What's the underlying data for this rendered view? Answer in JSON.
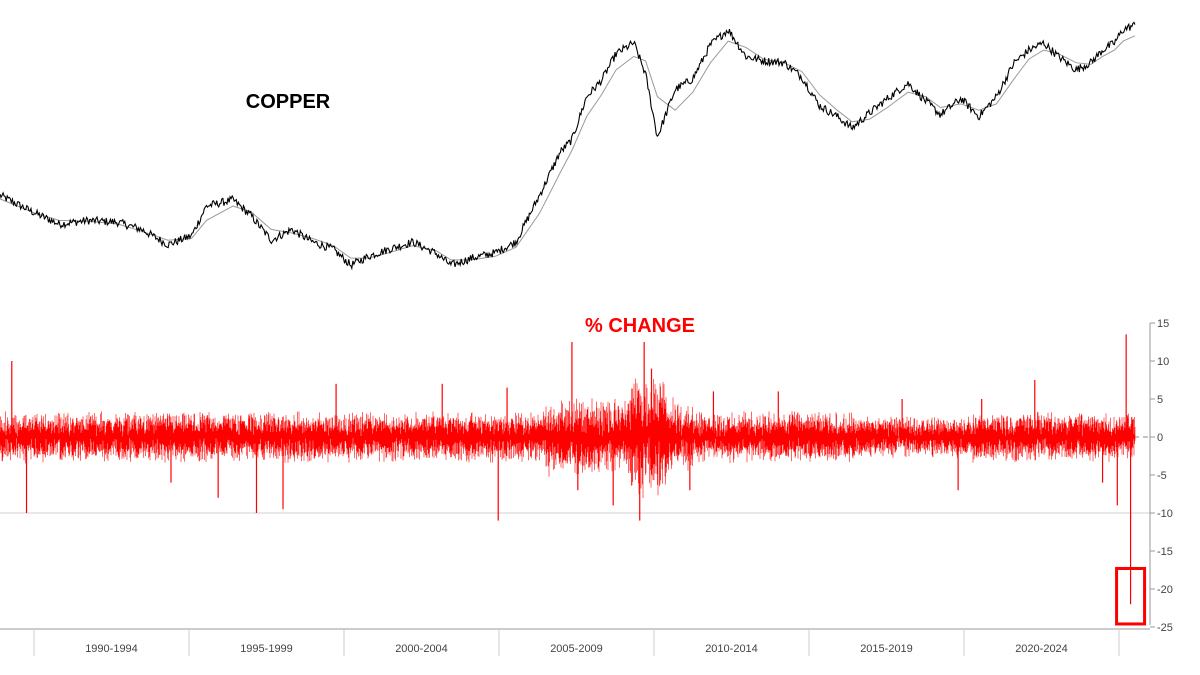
{
  "chart_data": [
    {
      "type": "line",
      "title": "COPPER",
      "series_color": "#000000",
      "ma_color": "#9a9a9a",
      "x_ticks": [
        "1990-1994",
        "1995-1999",
        "2000-2004",
        "2005-2009",
        "2010-2014",
        "2015-2019",
        "2020-2024"
      ],
      "x_range": [
        1987.0,
        2025.5
      ],
      "x": [
        1987.0,
        1987.6,
        1988.2,
        1989.0,
        1990.0,
        1991.0,
        1991.8,
        1992.7,
        1993.5,
        1994.0,
        1994.9,
        1995.5,
        1996.2,
        1996.9,
        1997.6,
        1998.3,
        1998.9,
        1999.5,
        2000.2,
        2001.0,
        2001.8,
        2002.3,
        2003.0,
        2003.8,
        2004.5,
        2005.3,
        2006.0,
        2006.4,
        2006.9,
        2007.4,
        2007.9,
        2008.5,
        2008.9,
        2009.3,
        2009.9,
        2010.5,
        2011.1,
        2011.7,
        2012.3,
        2012.9,
        2013.6,
        2014.2,
        2014.8,
        2015.4,
        2015.9,
        2016.5,
        2017.1,
        2017.8,
        2018.4,
        2018.9,
        2019.6,
        2020.2,
        2020.8,
        2021.4,
        2021.9,
        2022.4,
        2022.9,
        2023.5,
        2024.0,
        2024.4,
        2024.8,
        2025.1,
        2025.5
      ],
      "values": [
        100,
        90,
        80,
        68,
        72,
        70,
        62,
        45,
        55,
        88,
        95,
        78,
        50,
        62,
        48,
        40,
        22,
        32,
        40,
        48,
        35,
        22,
        30,
        36,
        48,
        100,
        148,
        162,
        210,
        228,
        258,
        270,
        235,
        165,
        218,
        230,
        268,
        285,
        255,
        250,
        248,
        232,
        200,
        188,
        175,
        192,
        208,
        225,
        205,
        190,
        208,
        188,
        210,
        248,
        262,
        270,
        255,
        240,
        248,
        262,
        270,
        285,
        290
      ],
      "ma_values": [
        96,
        88,
        80,
        72,
        71,
        68,
        60,
        50,
        52,
        72,
        88,
        82,
        62,
        58,
        52,
        44,
        30,
        30,
        36,
        44,
        38,
        28,
        28,
        32,
        42,
        80,
        125,
        150,
        188,
        212,
        240,
        255,
        250,
        210,
        195,
        215,
        248,
        272,
        265,
        252,
        248,
        238,
        212,
        195,
        182,
        185,
        198,
        215,
        210,
        198,
        202,
        195,
        202,
        230,
        252,
        262,
        258,
        248,
        246,
        255,
        262,
        272,
        278
      ]
    },
    {
      "type": "bar",
      "title": "% CHANGE",
      "series_color": "#ff0000",
      "y_ticks": [
        "15",
        "10",
        "5",
        "0",
        "-5",
        "-10",
        "-15",
        "-20",
        "-25"
      ],
      "ylim": [
        -25,
        15
      ],
      "gridlines": [
        -10
      ],
      "zero_line": 0,
      "spikes": [
        {
          "x": 1987.4,
          "value": 10
        },
        {
          "x": 1987.9,
          "value": -10
        },
        {
          "x": 1992.8,
          "value": -6
        },
        {
          "x": 1994.4,
          "value": -8
        },
        {
          "x": 1995.7,
          "value": -10
        },
        {
          "x": 1996.6,
          "value": -9.5
        },
        {
          "x": 1998.4,
          "value": 7
        },
        {
          "x": 2002.0,
          "value": 7
        },
        {
          "x": 2003.9,
          "value": -11
        },
        {
          "x": 2004.2,
          "value": 6.5
        },
        {
          "x": 2006.4,
          "value": 12.5
        },
        {
          "x": 2006.6,
          "value": -7
        },
        {
          "x": 2007.8,
          "value": -9
        },
        {
          "x": 2008.7,
          "value": -11
        },
        {
          "x": 2008.85,
          "value": 12.5
        },
        {
          "x": 2009.1,
          "value": 9
        },
        {
          "x": 2010.4,
          "value": -7
        },
        {
          "x": 2011.2,
          "value": 6
        },
        {
          "x": 2013.4,
          "value": 6
        },
        {
          "x": 2017.6,
          "value": 5
        },
        {
          "x": 2019.5,
          "value": -7
        },
        {
          "x": 2020.3,
          "value": 5
        },
        {
          "x": 2022.1,
          "value": 7.5
        },
        {
          "x": 2024.4,
          "value": -6
        },
        {
          "x": 2024.9,
          "value": -9
        },
        {
          "x": 2025.2,
          "value": 13.5
        },
        {
          "x": 2025.35,
          "value": -22
        }
      ],
      "highlight": {
        "x": 2025.35,
        "value": -22,
        "color": "#ff0000"
      }
    }
  ]
}
